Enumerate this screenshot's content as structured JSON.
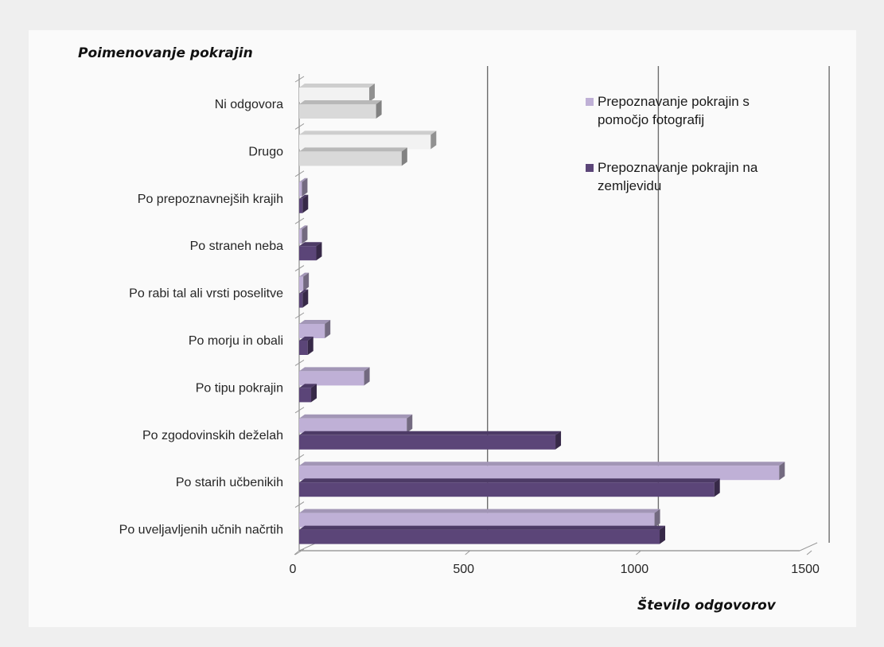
{
  "chart_data": {
    "type": "bar",
    "orientation": "horizontal",
    "title": "Poimenovanje pokrajin",
    "xlabel": "Število odgovorov",
    "xlim": [
      0,
      1500
    ],
    "xticks": [
      0,
      500,
      1000,
      1500
    ],
    "grid": true,
    "legend_position": "top-right",
    "categories": [
      "Ni odgovora",
      "Drugo",
      "Po prepoznavnejših krajih",
      "Po straneh neba",
      "Po rabi tal ali vrsti poselitve",
      "Po morju in obali",
      "Po tipu pokrajin",
      "Po zgodovinskih deželah",
      "Po starih učbenikih",
      "Po uveljavljenih učnih načrtih"
    ],
    "series": [
      {
        "name": "Prepoznavanje pokrajin s pomočjo fotografij",
        "legend_lines": [
          "Prepoznavanje pokrajin s",
          "pomočjo fotografij"
        ],
        "color": "#bfb0d6",
        "values": [
          205,
          385,
          8,
          8,
          12,
          75,
          190,
          315,
          1405,
          1040
        ]
      },
      {
        "name": "Prepoznavanje pokrajin na zemljevidu",
        "legend_lines": [
          "Prepoznavanje pokrajin na",
          "zemljevidu"
        ],
        "color": "#5b4578",
        "values": [
          225,
          300,
          10,
          50,
          10,
          25,
          35,
          750,
          1215,
          1055
        ]
      }
    ],
    "highlight_categories": [
      "Ni odgovora",
      "Drugo"
    ],
    "highlight_colors": [
      "#f2f2f2",
      "#d9d9d9"
    ]
  }
}
